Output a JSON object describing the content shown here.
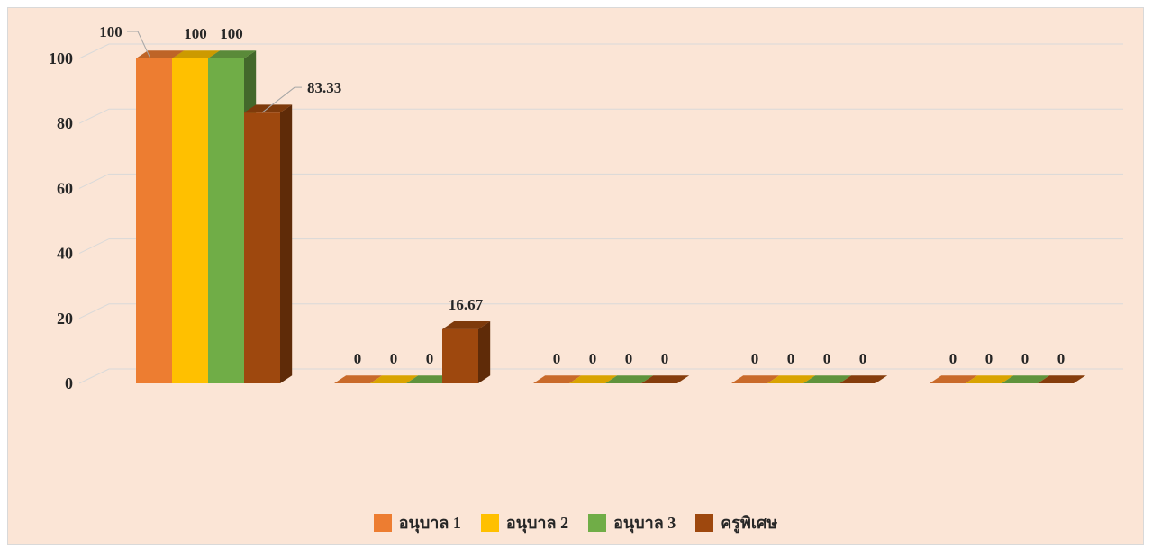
{
  "chart_data": {
    "type": "bar",
    "style": "3d-clustered-column",
    "categories": [
      "",
      "",
      "",
      "",
      ""
    ],
    "series": [
      {
        "name": "อนุบาล 1",
        "values": [
          100,
          0,
          0,
          0,
          0
        ],
        "color": "#ed7d31"
      },
      {
        "name": "อนุบาล 2",
        "values": [
          100,
          0,
          0,
          0,
          0
        ],
        "color": "#ffc000"
      },
      {
        "name": "อนุบาล 3",
        "values": [
          100,
          0,
          0,
          0,
          0
        ],
        "color": "#70ad47"
      },
      {
        "name": "ครูพิเศษ",
        "values": [
          83.33,
          16.67,
          0,
          0,
          0
        ],
        "color": "#9e480e"
      }
    ],
    "data_labels": [
      [
        "100",
        "0",
        "0",
        "0",
        "0"
      ],
      [
        "100",
        "0",
        "0",
        "0",
        "0"
      ],
      [
        "100",
        "0",
        "0",
        "0",
        "0"
      ],
      [
        "83.33",
        "16.67",
        "0",
        "0",
        "0"
      ]
    ],
    "yticks": [
      "0",
      "20",
      "40",
      "60",
      "80",
      "100"
    ],
    "ylim": [
      0,
      100
    ],
    "title": "",
    "xlabel": "",
    "ylabel": "",
    "grid": true,
    "legend_position": "bottom",
    "background": "#fbe5d6",
    "gridline_color": "#d9d9d9"
  }
}
